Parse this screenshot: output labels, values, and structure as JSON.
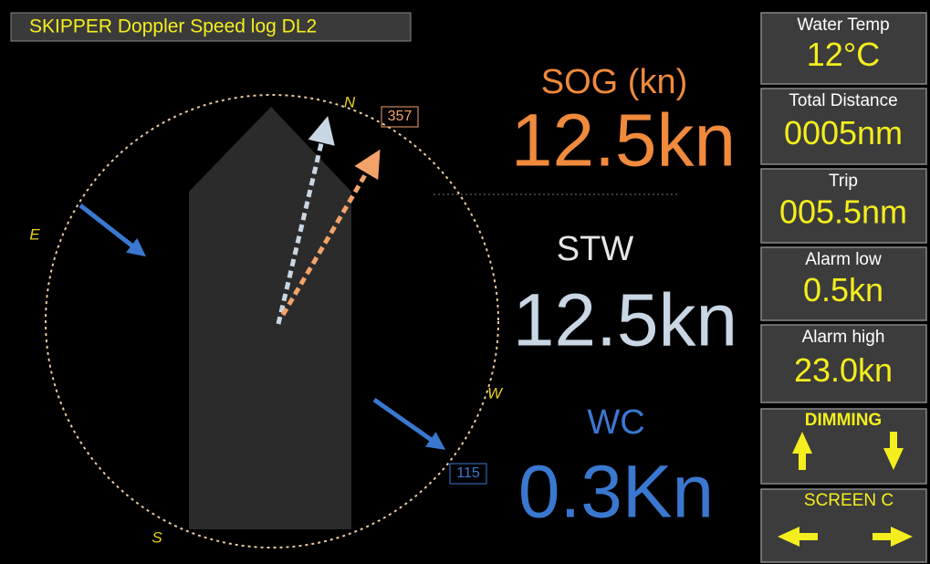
{
  "header": {
    "title": "SKIPPER Doppler Speed log DL2"
  },
  "compass": {
    "north": "N",
    "east": "E",
    "west": "W",
    "south": "S",
    "heading_box": "357",
    "current_box": "115"
  },
  "readings": {
    "sog": {
      "label": "SOG (kn)",
      "value": "12.5kn"
    },
    "stw": {
      "label": "STW",
      "value": "12.5kn"
    },
    "wc": {
      "label": "WC",
      "value": "0.3Kn"
    }
  },
  "side_panel": [
    {
      "label": "Water Temp",
      "value": "12°C"
    },
    {
      "label": "Total Distance",
      "value": "0005nm"
    },
    {
      "label": "Trip",
      "value": "005.5nm"
    },
    {
      "label": "Alarm low",
      "value": "0.5kn"
    },
    {
      "label": "Alarm high",
      "value": "23.0kn"
    }
  ],
  "buttons": [
    {
      "label": "DIMMING"
    },
    {
      "label": "SCREEN C"
    }
  ]
}
